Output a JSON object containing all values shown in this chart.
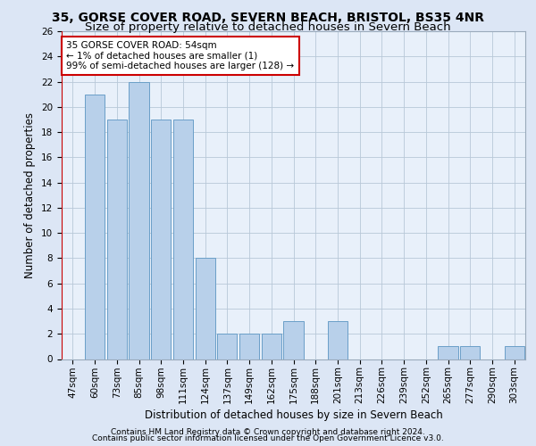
{
  "title_line1": "35, GORSE COVER ROAD, SEVERN BEACH, BRISTOL, BS35 4NR",
  "title_line2": "Size of property relative to detached houses in Severn Beach",
  "xlabel": "Distribution of detached houses by size in Severn Beach",
  "ylabel": "Number of detached properties",
  "categories": [
    "47sqm",
    "60sqm",
    "73sqm",
    "85sqm",
    "98sqm",
    "111sqm",
    "124sqm",
    "137sqm",
    "149sqm",
    "162sqm",
    "175sqm",
    "188sqm",
    "201sqm",
    "213sqm",
    "226sqm",
    "239sqm",
    "252sqm",
    "265sqm",
    "277sqm",
    "290sqm",
    "303sqm"
  ],
  "values": [
    0,
    21,
    19,
    22,
    19,
    19,
    8,
    2,
    2,
    2,
    3,
    0,
    3,
    0,
    0,
    0,
    0,
    1,
    1,
    0,
    1
  ],
  "bar_color": "#b8d0ea",
  "bar_edgecolor": "#6a9fc8",
  "vline_color": "#cc0000",
  "annotation_text": "35 GORSE COVER ROAD: 54sqm\n← 1% of detached houses are smaller (1)\n99% of semi-detached houses are larger (128) →",
  "annotation_box_color": "white",
  "annotation_box_edgecolor": "#cc0000",
  "ylim": [
    0,
    26
  ],
  "yticks": [
    0,
    2,
    4,
    6,
    8,
    10,
    12,
    14,
    16,
    18,
    20,
    22,
    24,
    26
  ],
  "footer_line1": "Contains HM Land Registry data © Crown copyright and database right 2024.",
  "footer_line2": "Contains public sector information licensed under the Open Government Licence v3.0.",
  "bg_color": "#dce6f5",
  "plot_bg_color": "#e8f0fa",
  "title_fontsize": 10,
  "subtitle_fontsize": 9.5,
  "axis_label_fontsize": 8.5,
  "tick_fontsize": 7.5,
  "footer_fontsize": 6.5,
  "annot_fontsize": 7.5
}
